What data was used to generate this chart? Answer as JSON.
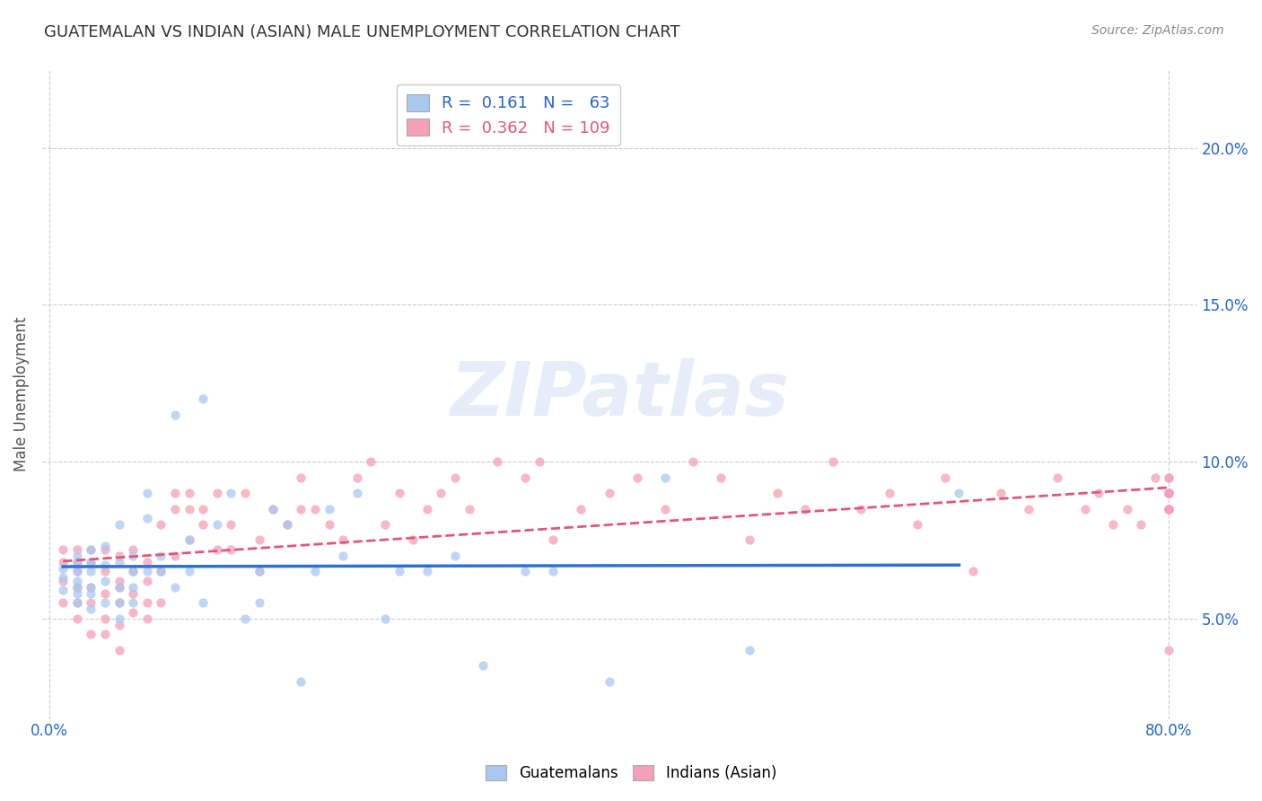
{
  "title": "GUATEMALAN VS INDIAN (ASIAN) MALE UNEMPLOYMENT CORRELATION CHART",
  "source": "Source: ZipAtlas.com",
  "ylabel": "Male Unemployment",
  "ytick_labels": [
    "5.0%",
    "10.0%",
    "15.0%",
    "20.0%"
  ],
  "ytick_values": [
    0.05,
    0.1,
    0.15,
    0.2
  ],
  "xlim": [
    -0.005,
    0.82
  ],
  "ylim": [
    0.018,
    0.225
  ],
  "watermark": "ZIPatlas",
  "legend_blue_R": "0.161",
  "legend_blue_N": "63",
  "legend_pink_R": "0.362",
  "legend_pink_N": "109",
  "guatemalan_color": "#a8c8f0",
  "indian_color": "#f4a0b8",
  "trend_blue_color": "#3070d0",
  "trend_pink_color": "#e05878",
  "background_color": "#ffffff",
  "grid_color": "#cccccc",
  "title_color": "#333333",
  "axis_label_color": "#2266cc",
  "scatter_alpha": 0.75,
  "scatter_size": 55,
  "guatemalan_x": [
    0.01,
    0.01,
    0.01,
    0.02,
    0.02,
    0.02,
    0.02,
    0.02,
    0.02,
    0.02,
    0.03,
    0.03,
    0.03,
    0.03,
    0.03,
    0.03,
    0.04,
    0.04,
    0.04,
    0.04,
    0.05,
    0.05,
    0.05,
    0.05,
    0.05,
    0.06,
    0.06,
    0.06,
    0.06,
    0.07,
    0.07,
    0.07,
    0.08,
    0.08,
    0.09,
    0.09,
    0.1,
    0.1,
    0.11,
    0.11,
    0.12,
    0.13,
    0.14,
    0.15,
    0.15,
    0.16,
    0.17,
    0.18,
    0.19,
    0.2,
    0.21,
    0.22,
    0.24,
    0.25,
    0.27,
    0.29,
    0.31,
    0.34,
    0.36,
    0.4,
    0.44,
    0.5,
    0.65
  ],
  "guatemalan_y": [
    0.063,
    0.066,
    0.059,
    0.065,
    0.06,
    0.068,
    0.055,
    0.07,
    0.058,
    0.062,
    0.06,
    0.065,
    0.058,
    0.072,
    0.053,
    0.068,
    0.062,
    0.067,
    0.055,
    0.073,
    0.06,
    0.068,
    0.055,
    0.08,
    0.05,
    0.06,
    0.07,
    0.055,
    0.065,
    0.065,
    0.082,
    0.09,
    0.065,
    0.07,
    0.115,
    0.06,
    0.075,
    0.065,
    0.12,
    0.055,
    0.08,
    0.09,
    0.05,
    0.065,
    0.055,
    0.085,
    0.08,
    0.03,
    0.065,
    0.085,
    0.07,
    0.09,
    0.05,
    0.065,
    0.065,
    0.07,
    0.035,
    0.065,
    0.065,
    0.03,
    0.095,
    0.04,
    0.09
  ],
  "indian_x": [
    0.01,
    0.01,
    0.01,
    0.01,
    0.02,
    0.02,
    0.02,
    0.02,
    0.02,
    0.02,
    0.03,
    0.03,
    0.03,
    0.03,
    0.03,
    0.04,
    0.04,
    0.04,
    0.04,
    0.04,
    0.05,
    0.05,
    0.05,
    0.05,
    0.05,
    0.05,
    0.06,
    0.06,
    0.06,
    0.06,
    0.07,
    0.07,
    0.07,
    0.07,
    0.08,
    0.08,
    0.08,
    0.09,
    0.09,
    0.09,
    0.1,
    0.1,
    0.1,
    0.11,
    0.11,
    0.12,
    0.12,
    0.13,
    0.13,
    0.14,
    0.15,
    0.15,
    0.16,
    0.17,
    0.18,
    0.18,
    0.19,
    0.2,
    0.21,
    0.22,
    0.23,
    0.24,
    0.25,
    0.26,
    0.27,
    0.28,
    0.29,
    0.3,
    0.32,
    0.34,
    0.35,
    0.36,
    0.38,
    0.4,
    0.42,
    0.44,
    0.46,
    0.48,
    0.5,
    0.52,
    0.54,
    0.56,
    0.58,
    0.6,
    0.62,
    0.64,
    0.66,
    0.68,
    0.7,
    0.72,
    0.74,
    0.75,
    0.76,
    0.77,
    0.78,
    0.79,
    0.8,
    0.8,
    0.8,
    0.8,
    0.8,
    0.8,
    0.8,
    0.8,
    0.8,
    0.8,
    0.8,
    0.8,
    0.8
  ],
  "indian_y": [
    0.062,
    0.068,
    0.055,
    0.072,
    0.06,
    0.068,
    0.055,
    0.072,
    0.05,
    0.065,
    0.06,
    0.068,
    0.055,
    0.045,
    0.072,
    0.065,
    0.058,
    0.072,
    0.05,
    0.045,
    0.062,
    0.055,
    0.07,
    0.048,
    0.06,
    0.04,
    0.065,
    0.058,
    0.072,
    0.052,
    0.068,
    0.062,
    0.05,
    0.055,
    0.08,
    0.065,
    0.055,
    0.085,
    0.09,
    0.07,
    0.09,
    0.075,
    0.085,
    0.08,
    0.085,
    0.072,
    0.09,
    0.08,
    0.072,
    0.09,
    0.075,
    0.065,
    0.085,
    0.08,
    0.085,
    0.095,
    0.085,
    0.08,
    0.075,
    0.095,
    0.1,
    0.08,
    0.09,
    0.075,
    0.085,
    0.09,
    0.095,
    0.085,
    0.1,
    0.095,
    0.1,
    0.075,
    0.085,
    0.09,
    0.095,
    0.085,
    0.1,
    0.095,
    0.075,
    0.09,
    0.085,
    0.1,
    0.085,
    0.09,
    0.08,
    0.095,
    0.065,
    0.09,
    0.085,
    0.095,
    0.085,
    0.09,
    0.08,
    0.085,
    0.08,
    0.095,
    0.09,
    0.085,
    0.09,
    0.095,
    0.09,
    0.085,
    0.09,
    0.095,
    0.085,
    0.09,
    0.085,
    0.09,
    0.04
  ]
}
